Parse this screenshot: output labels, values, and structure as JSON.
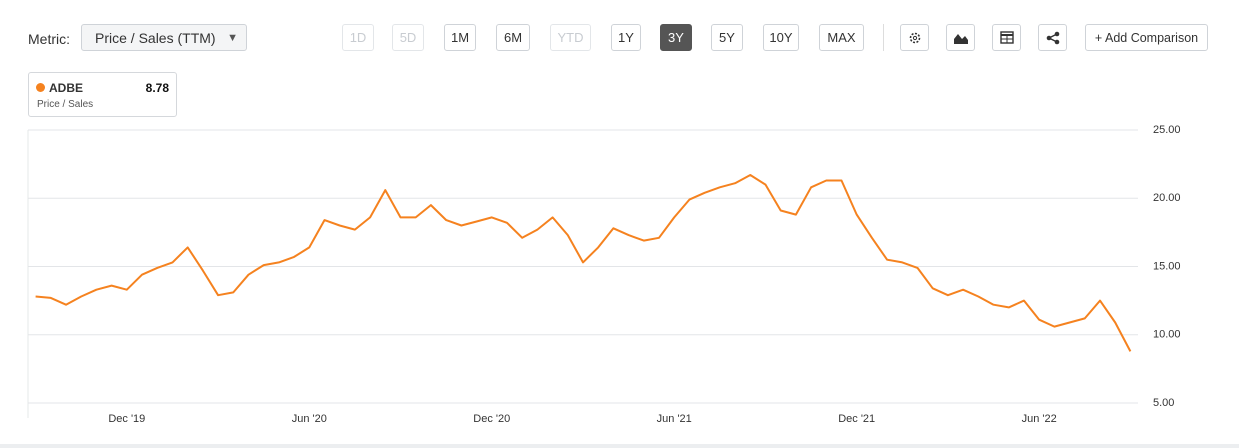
{
  "toolbar": {
    "metric_label": "Metric:",
    "metric_select": "Price / Sales (TTM)",
    "ranges": [
      {
        "label": "1D",
        "state": "disabled"
      },
      {
        "label": "5D",
        "state": "disabled"
      },
      {
        "label": "1M",
        "state": "enabled"
      },
      {
        "label": "6M",
        "state": "enabled"
      },
      {
        "label": "YTD",
        "state": "disabled"
      },
      {
        "label": "1Y",
        "state": "enabled"
      },
      {
        "label": "3Y",
        "state": "active"
      },
      {
        "label": "5Y",
        "state": "enabled"
      },
      {
        "label": "10Y",
        "state": "enabled"
      },
      {
        "label": "MAX",
        "state": "enabled"
      }
    ],
    "add_comparison": "+ Add Comparison"
  },
  "legend": {
    "metric": "Price / Sales"
  },
  "chart_data": {
    "type": "line",
    "categories": [
      null,
      null,
      null,
      null,
      null,
      null,
      "Dec '19",
      null,
      null,
      null,
      null,
      null,
      null,
      null,
      null,
      null,
      null,
      null,
      "Jun '20",
      null,
      null,
      null,
      null,
      null,
      null,
      null,
      null,
      null,
      null,
      null,
      "Dec '20",
      null,
      null,
      null,
      null,
      null,
      null,
      null,
      null,
      null,
      null,
      null,
      "Jun '21",
      null,
      null,
      null,
      null,
      null,
      null,
      null,
      null,
      null,
      null,
      null,
      "Dec '21",
      null,
      null,
      null,
      null,
      null,
      null,
      null,
      null,
      null,
      null,
      null,
      "Jun '22",
      null,
      null,
      null,
      null,
      null,
      null
    ],
    "series": [
      {
        "name": "ADBE",
        "color": "#f5821f",
        "values": [
          12.8,
          12.7,
          12.2,
          12.8,
          13.3,
          13.6,
          13.3,
          14.4,
          14.9,
          15.3,
          16.4,
          14.7,
          12.9,
          13.1,
          14.4,
          15.1,
          15.3,
          15.7,
          16.4,
          18.4,
          18.0,
          17.7,
          18.6,
          20.6,
          18.6,
          18.6,
          19.5,
          18.4,
          18.0,
          18.3,
          18.6,
          18.2,
          17.1,
          17.7,
          18.6,
          17.3,
          15.3,
          16.4,
          17.8,
          17.3,
          16.9,
          17.1,
          18.6,
          19.9,
          20.4,
          20.8,
          21.1,
          21.7,
          21.0,
          19.1,
          18.8,
          20.8,
          21.3,
          21.3,
          18.8,
          17.1,
          15.5,
          15.3,
          14.9,
          13.4,
          12.9,
          13.3,
          12.8,
          12.2,
          12.0,
          12.5,
          11.1,
          10.6,
          10.9,
          11.2,
          12.5,
          10.9,
          8.78
        ]
      }
    ],
    "ylim": [
      5,
      25
    ],
    "yticks": [
      {
        "value": 5,
        "label": "5.00"
      },
      {
        "value": 10,
        "label": "10.00"
      },
      {
        "value": 15,
        "label": "15.00"
      },
      {
        "value": 20,
        "label": "20.00"
      },
      {
        "value": 25,
        "label": "25.00"
      }
    ],
    "grid": true
  }
}
